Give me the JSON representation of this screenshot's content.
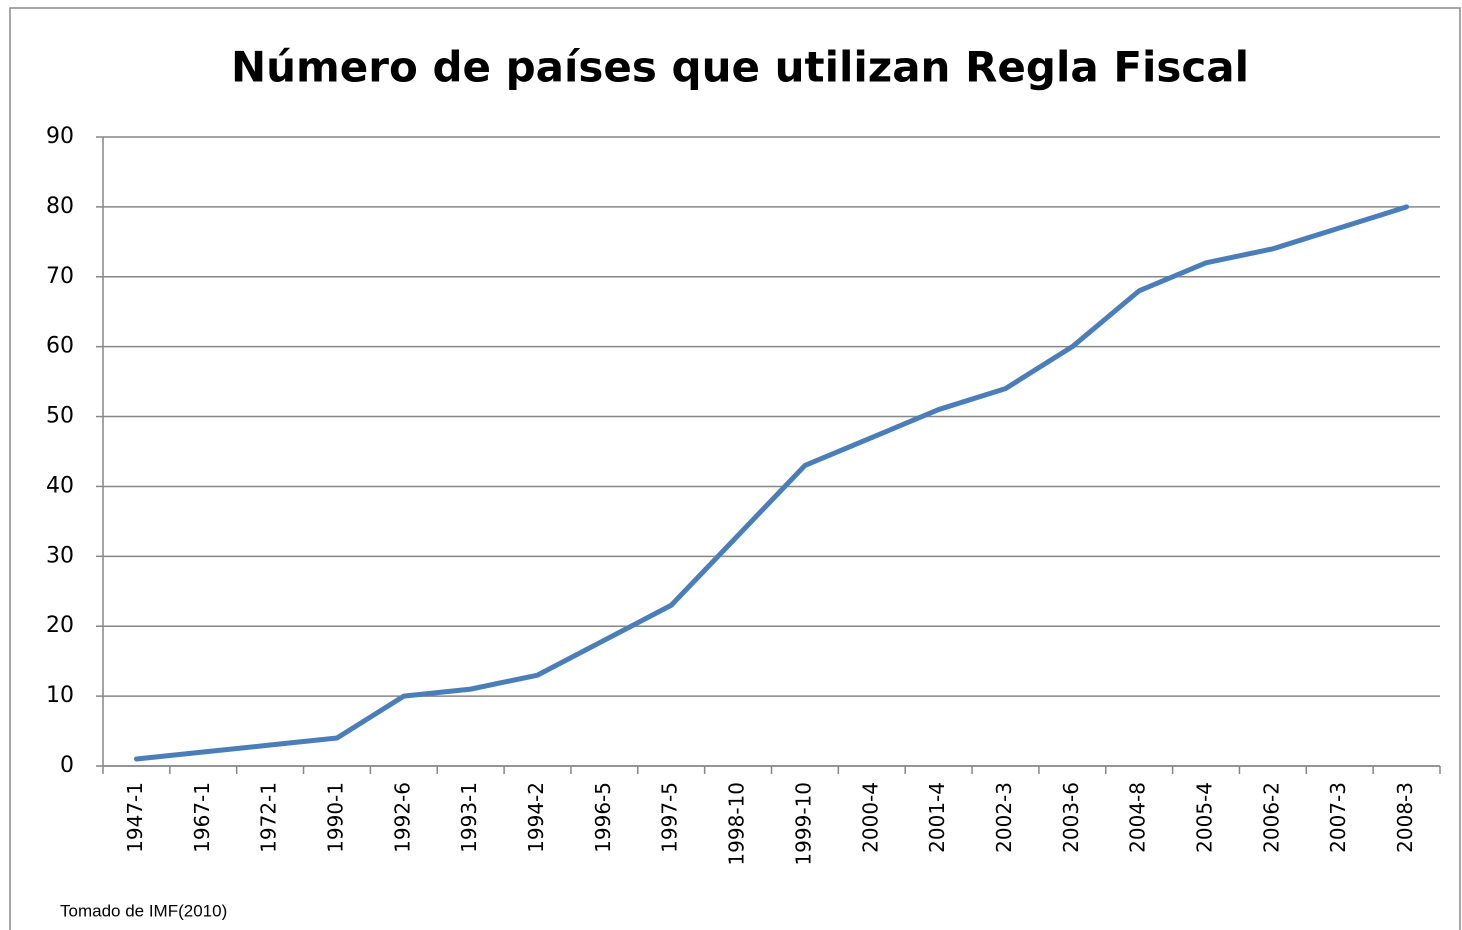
{
  "chart_data": {
    "type": "line",
    "title": "Número de países que utilizan Regla Fiscal",
    "source": "Tomado de IMF(2010)",
    "categories": [
      "1947-1",
      "1967-1",
      "1972-1",
      "1990-1",
      "1992-6",
      "1993-1",
      "1994-2",
      "1996-5",
      "1997-5",
      "1998-10",
      "1999-10",
      "2000-4",
      "2001-4",
      "2002-3",
      "2003-6",
      "2004-8",
      "2005-4",
      "2006-2",
      "2007-3",
      "2008-3"
    ],
    "values": [
      1,
      2,
      3,
      4,
      10,
      11,
      13,
      18,
      23,
      33,
      43,
      47,
      51,
      54,
      60,
      68,
      72,
      74,
      77,
      80
    ],
    "color": "#4a7ebb",
    "ylim": [
      0,
      90
    ],
    "yticks": [
      0,
      10,
      20,
      30,
      40,
      50,
      60,
      70,
      80,
      90
    ],
    "grid": true
  }
}
